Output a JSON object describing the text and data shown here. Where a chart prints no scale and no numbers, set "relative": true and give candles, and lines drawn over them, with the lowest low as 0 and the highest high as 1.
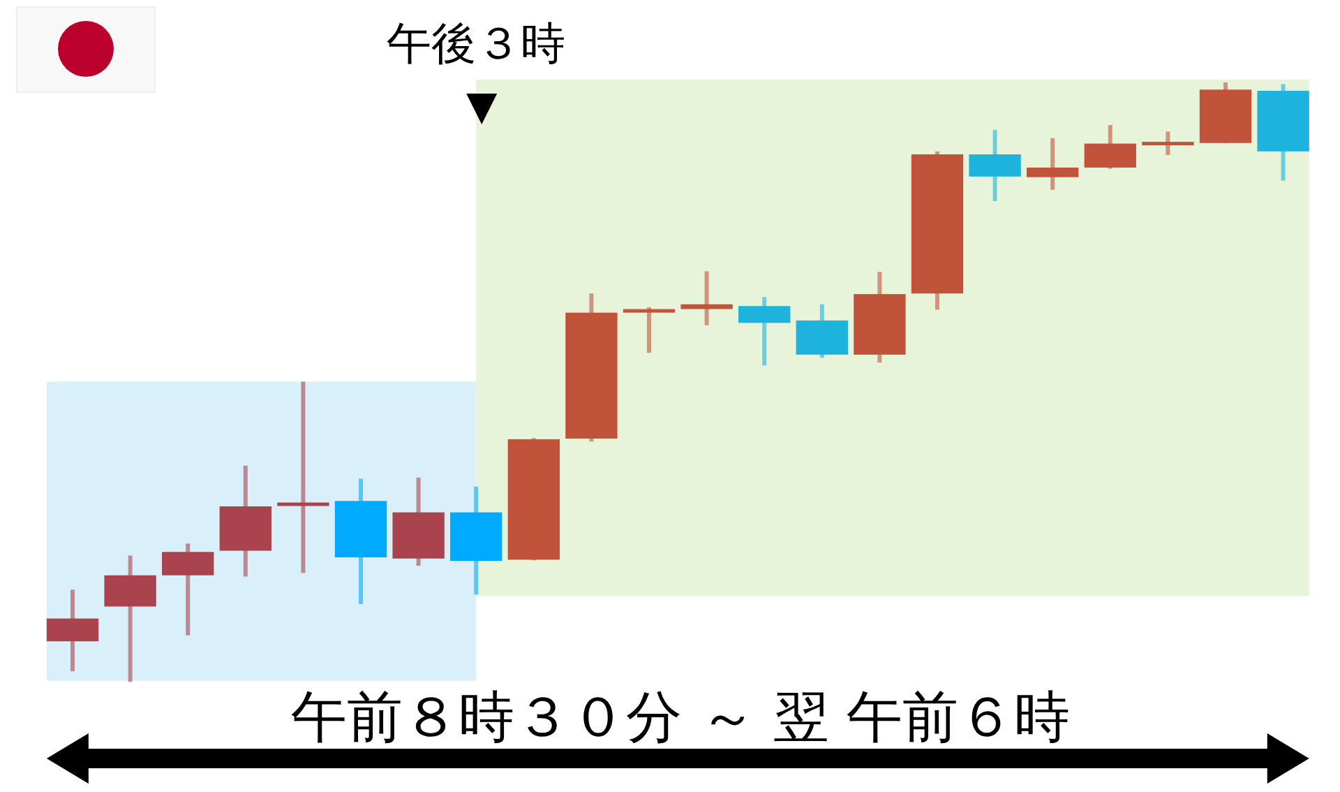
{
  "chart_data": {
    "type": "candlestick",
    "relative": true,
    "categories": [
      null,
      null,
      null,
      null,
      null,
      null,
      null,
      null,
      null,
      null,
      null,
      null,
      null,
      null,
      null,
      null,
      null,
      null,
      null,
      null,
      null,
      null
    ],
    "ohlc": [
      [
        0.068,
        0.154,
        0.018,
        0.106
      ],
      [
        0.126,
        0.211,
        0,
        0.178
      ],
      [
        0.178,
        0.231,
        0.078,
        0.217
      ],
      [
        0.219,
        0.361,
        0.176,
        0.293
      ],
      [
        0.295,
        0.501,
        0.182,
        0.298
      ],
      [
        0.302,
        0.339,
        0.13,
        0.208
      ],
      [
        0.206,
        0.341,
        0.194,
        0.283
      ],
      [
        0.283,
        0.326,
        0.146,
        0.202
      ],
      [
        0.204,
        0.407,
        0.203,
        0.405
      ],
      [
        0.406,
        0.648,
        0.401,
        0.616
      ],
      [
        0.617,
        0.625,
        0.549,
        0.621
      ],
      [
        0.622,
        0.685,
        0.595,
        0.63
      ],
      [
        0.627,
        0.642,
        0.528,
        0.599
      ],
      [
        0.603,
        0.63,
        0.541,
        0.546
      ],
      [
        0.546,
        0.684,
        0.533,
        0.647
      ],
      [
        0.648,
        0.885,
        0.621,
        0.88
      ],
      [
        0.88,
        0.921,
        0.802,
        0.843
      ],
      [
        0.842,
        0.907,
        0.821,
        0.858
      ],
      [
        0.858,
        0.929,
        0.856,
        0.898
      ],
      [
        0.897,
        0.918,
        0.879,
        0.899
      ],
      [
        0.899,
        1,
        0.899,
        0.988
      ],
      [
        0.986,
        0.997,
        0.836,
        0.885
      ]
    ],
    "colors": [
      "#a9444e",
      "#a9444e",
      "#a9444e",
      "#a9444e",
      "#a9444e",
      "#00aaff",
      "#a9444e",
      "#00aaff",
      "#c0533a",
      "#c0533a",
      "#c0533a",
      "#c0533a",
      "#1db3dd",
      "#1db3dd",
      "#c0533a",
      "#c0533a",
      "#1db3dd",
      "#c0533a",
      "#c0533a",
      "#c0533a",
      "#c0533a",
      "#1db3dd"
    ],
    "xlabel": "午前８時３０分 ～ 翌 午前６時",
    "annotations": [
      "午後３時"
    ]
  }
}
